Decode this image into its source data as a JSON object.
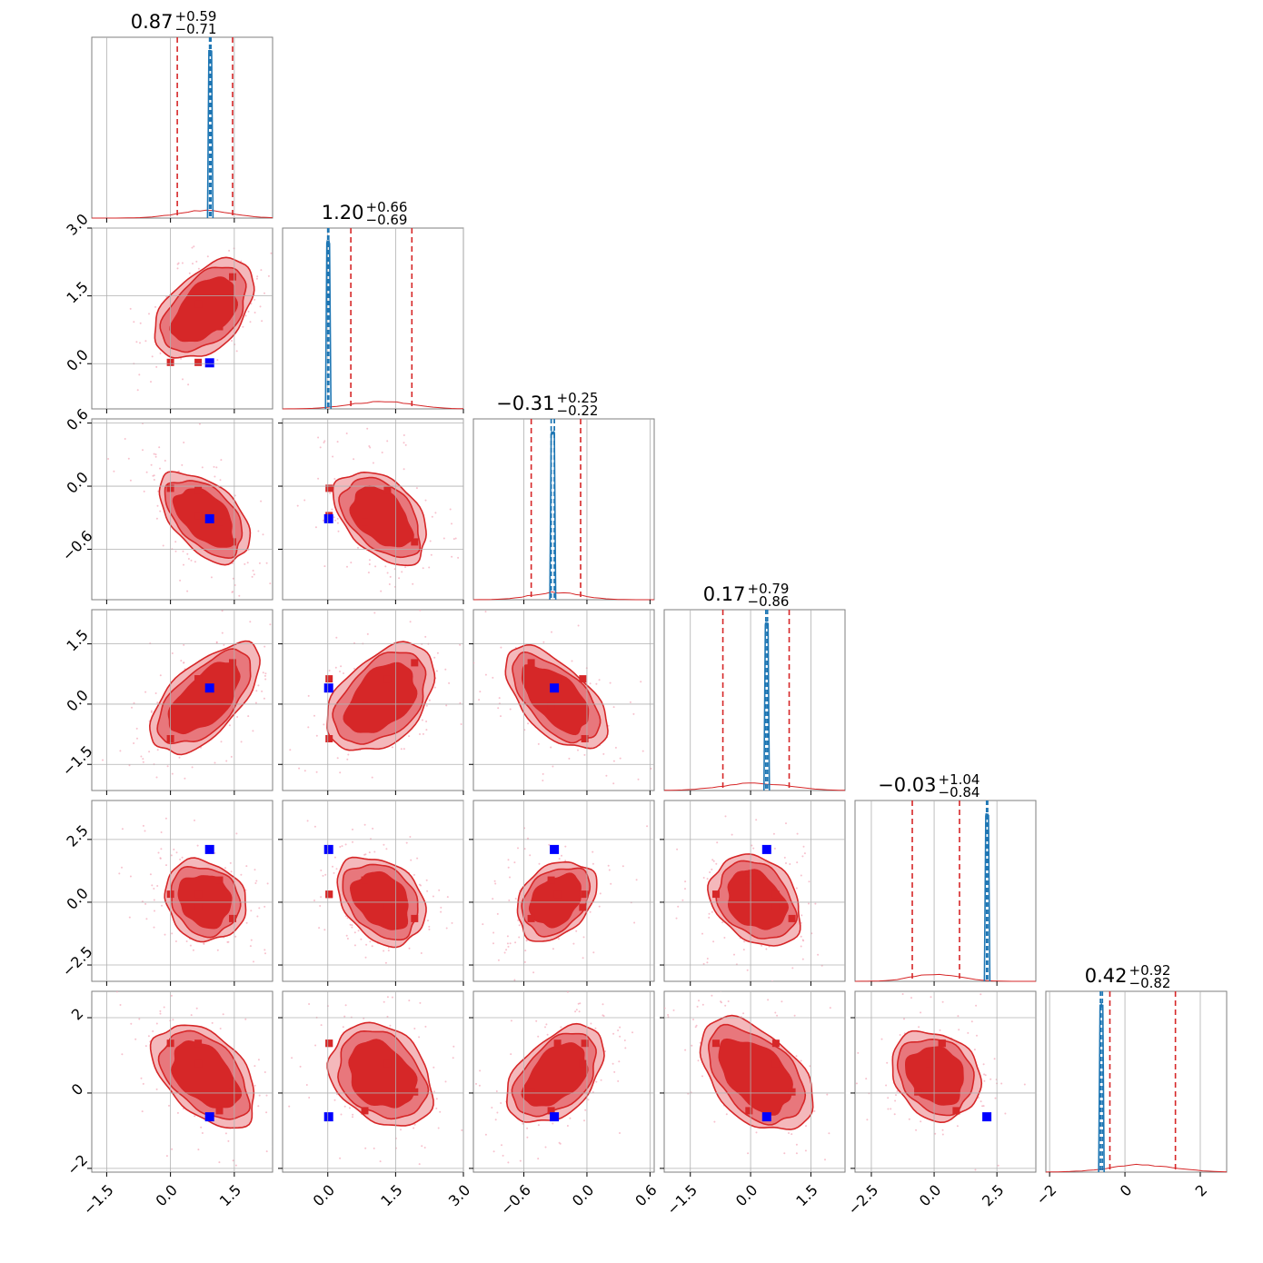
{
  "chart_data": {
    "type": "scatter",
    "subtype": "corner-plot",
    "n_params": 6,
    "colors": {
      "red": "#d62728",
      "red_fill_light": "#f4b8bb",
      "red_fill_mid": "#e8777c",
      "blue_line": "#1f77b4",
      "truth_marker": "#0000ff",
      "scatter_dots": "#f4a6b8",
      "grid": "#b0b0b0"
    },
    "grid": true,
    "axis_ranges": [
      [
        -1.85,
        2.4
      ],
      [
        -1.0,
        3.0
      ],
      [
        -1.08,
        0.64
      ],
      [
        -2.15,
        2.35
      ],
      [
        -3.15,
        4.05
      ],
      [
        -2.1,
        2.7
      ]
    ],
    "diagonal_titles": [
      {
        "value": "0.87",
        "plus": "+0.59",
        "minus": "−0.71"
      },
      {
        "value": "1.20",
        "plus": "+0.66",
        "minus": "−0.69"
      },
      {
        "value": "−0.31",
        "plus": "+0.25",
        "minus": "−0.22"
      },
      {
        "value": "0.17",
        "plus": "+0.79",
        "minus": "−0.86"
      },
      {
        "value": "−0.03",
        "plus": "+1.04",
        "minus": "−0.84"
      },
      {
        "value": "0.42",
        "plus": "+0.92",
        "minus": "−0.82"
      }
    ],
    "x_ticks": [
      {
        "values": [
          -1.5,
          0.0,
          1.5
        ],
        "labels": [
          "−1.5",
          "0.0",
          "1.5"
        ]
      },
      {
        "values": [
          0.0,
          1.5,
          3.0
        ],
        "labels": [
          "0.0",
          "1.5",
          "3.0"
        ]
      },
      {
        "values": [
          -0.6,
          0.0,
          0.6
        ],
        "labels": [
          "−0.6",
          "0.0",
          "0.6"
        ]
      },
      {
        "values": [
          -1.5,
          0.0,
          1.5
        ],
        "labels": [
          "−1.5",
          "0.0",
          "1.5"
        ]
      },
      {
        "values": [
          -2.5,
          0.0,
          2.5
        ],
        "labels": [
          "−2.5",
          "0.0",
          "2.5"
        ]
      },
      {
        "values": [
          -2,
          0,
          2
        ],
        "labels": [
          "−2",
          "0",
          "2"
        ]
      }
    ],
    "y_ticks": [
      null,
      {
        "values": [
          0.0,
          1.5,
          3.0
        ],
        "labels": [
          "0.0",
          "1.5",
          "3.0"
        ]
      },
      {
        "values": [
          -0.6,
          0.0,
          0.6
        ],
        "labels": [
          "−0.6",
          "0.0",
          "0.6"
        ]
      },
      {
        "values": [
          -1.5,
          0.0,
          1.5
        ],
        "labels": [
          "−1.5",
          "0.0",
          "1.5"
        ]
      },
      {
        "values": [
          -2.5,
          0.0,
          2.5
        ],
        "labels": [
          "−2.5",
          "0.0",
          "2.5"
        ]
      },
      {
        "values": [
          -2,
          0,
          2
        ],
        "labels": [
          "−2",
          "0",
          "2"
        ]
      }
    ],
    "marginal_quantiles": [
      [
        0.16,
        1.46
      ],
      [
        0.51,
        1.86
      ],
      [
        -0.53,
        -0.06
      ],
      [
        -0.69,
        0.96
      ],
      [
        -0.87,
        1.01
      ],
      [
        -0.4,
        1.34
      ]
    ],
    "estimate_lines": [
      [
        0.92,
        0.95
      ],
      [
        0.0,
        0.02
      ],
      [
        -0.34,
        -0.31
      ],
      [
        0.38,
        0.42
      ],
      [
        2.09,
        2.13
      ],
      [
        -0.65,
        -0.6
      ]
    ],
    "truth_values": [
      0.92,
      0.02,
      -0.31,
      0.4,
      2.1,
      -0.63
    ],
    "modes": [
      [
        0.0,
        0.03,
        -0.02,
        -0.86,
        0.32,
        1.32
      ],
      [
        0.65,
        0.03,
        -0.28,
        0.63,
        0.31,
        1.32
      ],
      [
        0.92,
        0.02,
        -0.31,
        0.4,
        2.1,
        -0.63
      ],
      [
        1.15,
        0.82,
        -0.34,
        -0.04,
        0.88,
        -0.47
      ],
      [
        1.46,
        1.92,
        -0.53,
        1.03,
        -0.65,
        0.03
      ],
      [
        0.65,
        1.32,
        -0.04,
        0.63,
        -0.2,
        0.78
      ]
    ],
    "marginal_hist_peak_fraction": 0.04
  }
}
